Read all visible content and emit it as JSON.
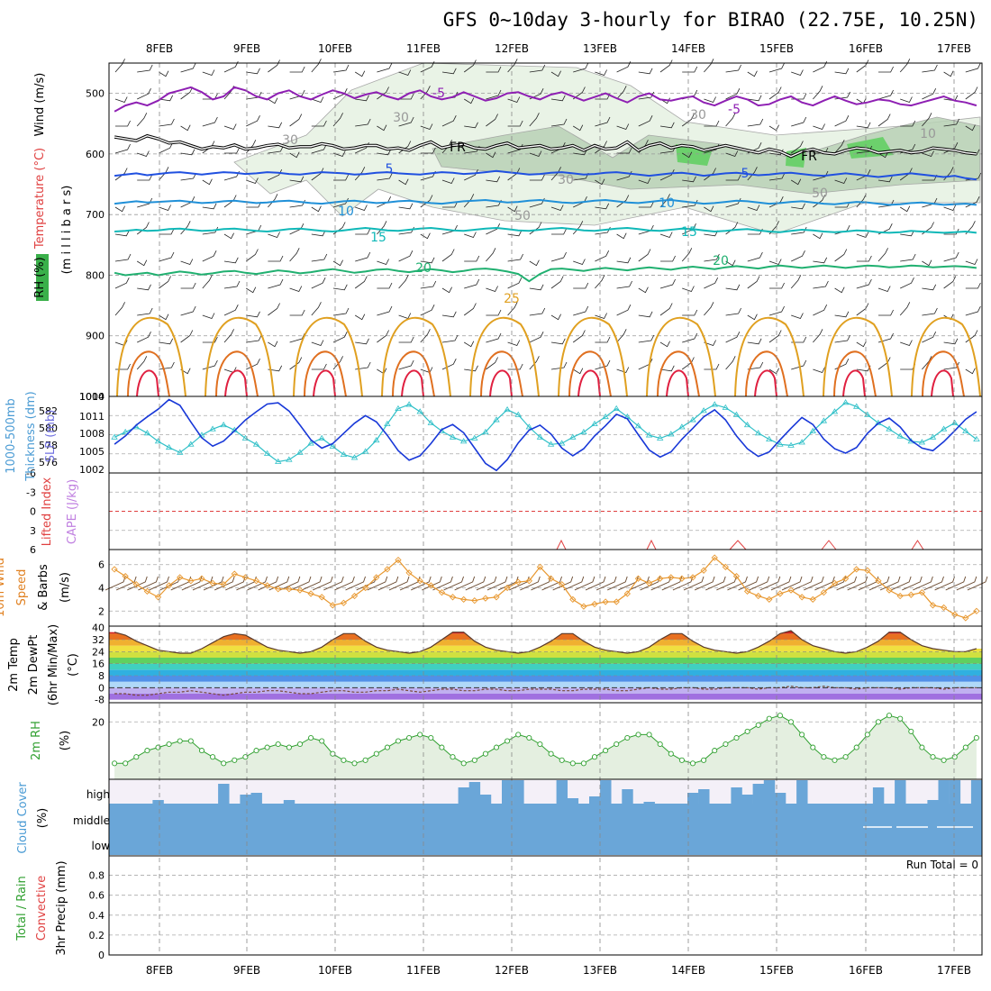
{
  "title": "GFS 0~10day 3-hourly for BIRAO (22.75E, 10.25N)",
  "dates": [
    "8FEB",
    "9FEB",
    "10FEB",
    "11FEB",
    "12FEB",
    "13FEB",
    "14FEB",
    "15FEB",
    "16FEB",
    "17FEB"
  ],
  "panels": {
    "upper": {
      "labels": [
        {
          "text": "Wind (m/s)",
          "color": "#000000"
        },
        {
          "text": "Temperature (°C)",
          "color": "#e04040"
        },
        {
          "text": "RH (%)",
          "color": "#000000"
        },
        {
          "text": "(m i l l i b a r s)",
          "color": "#000000"
        }
      ],
      "y_ticks": [
        "500",
        "600",
        "700",
        "800",
        "900",
        "1000"
      ],
      "contour_labels": [
        "-5",
        "-5",
        "FR",
        "FR",
        "5",
        "5",
        "10",
        "10",
        "15",
        "15",
        "20",
        "20",
        "25",
        "30",
        "30",
        "30",
        "30",
        "50",
        "50",
        "10"
      ]
    },
    "thickness": {
      "labels": [
        {
          "text": "1000-500mb",
          "color": "#4a9bd4"
        },
        {
          "text": "Thickness (dm)",
          "color": "#4a9bd4"
        },
        {
          "text": "SLP (mb)",
          "color": "#7070e0"
        }
      ],
      "left_ticks": [
        "582",
        "580",
        "578",
        "576"
      ],
      "right_ticks": [
        "1014",
        "1011",
        "1008",
        "1005",
        "1002"
      ]
    },
    "li": {
      "labels": [
        {
          "text": "Lifted Index",
          "color": "#e04040"
        },
        {
          "text": "CAPE (J/kg)",
          "color": "#c080e0"
        }
      ],
      "y_ticks": [
        "-6",
        "-3",
        "0",
        "3",
        "6"
      ]
    },
    "wind10": {
      "labels": [
        {
          "text": "10m Wind",
          "color": "#e08020"
        },
        {
          "text": "Speed",
          "color": "#e08020"
        },
        {
          "text": "& Barbs",
          "color": "#000000"
        },
        {
          "text": "(m/s)",
          "color": "#000000"
        }
      ],
      "y_ticks": [
        "6",
        "4",
        "2"
      ]
    },
    "temp2m": {
      "labels": [
        {
          "text": "2m Temp",
          "color": "#000000"
        },
        {
          "text": "2m DewPt",
          "color": "#000000"
        },
        {
          "text": "(6hr Min/Max)",
          "color": "#000000"
        },
        {
          "text": "(°C)",
          "color": "#000000"
        }
      ],
      "y_ticks": [
        "40",
        "32",
        "24",
        "16",
        "8",
        "0",
        "-8"
      ]
    },
    "rh2m": {
      "labels": [
        {
          "text": "2m RH",
          "color": "#30a030"
        },
        {
          "text": "(%)",
          "color": "#000000"
        }
      ],
      "y_ticks": [
        "20"
      ]
    },
    "cloud": {
      "labels": [
        {
          "text": "Cloud Cover",
          "color": "#4a9bd4"
        },
        {
          "text": "(%)",
          "color": "#000000"
        }
      ],
      "levels": [
        "high",
        "middle",
        "low"
      ]
    },
    "precip": {
      "labels": [
        {
          "text": "Total / Rain",
          "color": "#30a030"
        },
        {
          "text": "Convective",
          "color": "#e04040"
        },
        {
          "text": "3hr Precip (mm)",
          "color": "#000000"
        }
      ],
      "y_ticks": [
        "0.8",
        "0.6",
        "0.4",
        "0.2",
        "0"
      ],
      "run_total": "Run Total = 0"
    }
  },
  "chart_data": {
    "type": "line",
    "x_dates": [
      "8FEB",
      "9FEB",
      "10FEB",
      "11FEB",
      "12FEB",
      "13FEB",
      "14FEB",
      "15FEB",
      "16FEB",
      "17FEB"
    ],
    "n_steps": 80,
    "freezing_level_mb": [
      572,
      575,
      578,
      570,
      575,
      582,
      580,
      586,
      592,
      588,
      590,
      585,
      592,
      590,
      586,
      584,
      590,
      588,
      588,
      583,
      586,
      592,
      590,
      586,
      586,
      592,
      590,
      594,
      586,
      580,
      590,
      586,
      584,
      590,
      592,
      586,
      582,
      590,
      588,
      586,
      592,
      590,
      586,
      594,
      586,
      592,
      590,
      580,
      594,
      586,
      582,
      590,
      586,
      588,
      594,
      590,
      586,
      590,
      594,
      598,
      592,
      596,
      604,
      596,
      592,
      598,
      600,
      594,
      590,
      592,
      598,
      596,
      594,
      598,
      596,
      590,
      592,
      594,
      598,
      600
    ],
    "iso_minus5_mb": [
      530,
      520,
      515,
      520,
      512,
      500,
      495,
      490,
      498,
      510,
      505,
      490,
      495,
      505,
      510,
      500,
      495,
      505,
      510,
      502,
      495,
      500,
      508,
      502,
      498,
      505,
      510,
      500,
      495,
      505,
      510,
      506,
      498,
      505,
      512,
      508,
      500,
      498,
      505,
      510,
      502,
      498,
      505,
      512,
      506,
      500,
      508,
      515,
      505,
      500,
      510,
      512,
      508,
      505,
      515,
      520,
      512,
      505,
      510,
      520,
      518,
      510,
      505,
      515,
      520,
      512,
      505,
      512,
      518,
      515,
      510,
      512,
      518,
      520,
      515,
      510,
      505,
      512,
      515,
      520
    ],
    "iso5_mb": [
      636,
      634,
      632,
      635,
      633,
      631,
      630,
      632,
      634,
      632,
      630,
      631,
      633,
      632,
      630,
      631,
      633,
      634,
      632,
      630,
      631,
      632,
      634,
      633,
      631,
      630,
      632,
      633,
      634,
      632,
      630,
      631,
      633,
      632,
      630,
      628,
      630,
      632,
      634,
      633,
      631,
      630,
      632,
      634,
      633,
      631,
      630,
      632,
      634,
      636,
      634,
      632,
      631,
      633,
      636,
      634,
      632,
      631,
      633,
      635,
      634,
      632,
      631,
      633,
      635,
      636,
      634,
      632,
      634,
      636,
      638,
      636,
      634,
      632,
      634,
      636,
      638,
      636,
      640,
      642
    ],
    "iso10_mb": [
      682,
      680,
      678,
      680,
      679,
      678,
      677,
      679,
      681,
      680,
      678,
      677,
      679,
      681,
      680,
      678,
      677,
      679,
      681,
      682,
      680,
      678,
      677,
      679,
      681,
      680,
      678,
      677,
      679,
      681,
      682,
      680,
      678,
      677,
      676,
      678,
      680,
      679,
      677,
      676,
      678,
      680,
      681,
      679,
      677,
      676,
      678,
      680,
      681,
      679,
      677,
      676,
      678,
      680,
      682,
      681,
      679,
      677,
      678,
      680,
      682,
      681,
      679,
      678,
      680,
      682,
      683,
      681,
      679,
      680,
      682,
      684,
      683,
      681,
      680,
      682,
      684,
      683,
      682,
      684
    ],
    "iso15_mb": [
      728,
      727,
      725,
      727,
      726,
      724,
      723,
      725,
      727,
      726,
      724,
      723,
      725,
      727,
      728,
      726,
      724,
      723,
      725,
      727,
      728,
      726,
      724,
      722,
      724,
      726,
      727,
      725,
      723,
      722,
      724,
      726,
      727,
      725,
      723,
      722,
      724,
      726,
      727,
      725,
      723,
      722,
      724,
      726,
      727,
      725,
      723,
      722,
      724,
      726,
      727,
      725,
      723,
      724,
      726,
      728,
      727,
      725,
      724,
      726,
      728,
      729,
      727,
      725,
      726,
      728,
      729,
      728,
      726,
      727,
      729,
      730,
      729,
      727,
      728,
      729,
      730,
      729,
      728,
      730
    ],
    "iso20_mb": [
      796,
      800,
      798,
      796,
      800,
      797,
      794,
      796,
      799,
      797,
      794,
      793,
      796,
      798,
      795,
      792,
      794,
      797,
      795,
      792,
      790,
      793,
      796,
      794,
      791,
      790,
      793,
      795,
      792,
      790,
      792,
      795,
      793,
      790,
      789,
      791,
      794,
      798,
      810,
      798,
      790,
      789,
      791,
      793,
      790,
      788,
      790,
      792,
      789,
      787,
      789,
      791,
      788,
      786,
      788,
      790,
      787,
      785,
      787,
      789,
      786,
      784,
      786,
      788,
      786,
      784,
      786,
      788,
      786,
      784,
      785,
      787,
      786,
      784,
      785,
      787,
      786,
      785,
      786,
      788
    ],
    "thickness_dm": [
      579.0,
      579.5,
      580.0,
      579.4,
      578.6,
      578.0,
      577.5,
      578.3,
      579.2,
      579.8,
      580.2,
      579.7,
      578.9,
      578.3,
      577.4,
      576.6,
      576.8,
      577.5,
      578.4,
      578.9,
      578.1,
      577.3,
      577.0,
      577.6,
      578.7,
      580.3,
      581.8,
      582.2,
      581.5,
      580.4,
      579.6,
      579.0,
      578.6,
      578.9,
      579.5,
      580.7,
      581.7,
      581.2,
      580.0,
      579.0,
      578.3,
      578.4,
      579.0,
      579.5,
      580.3,
      581.0,
      581.8,
      581.0,
      580.1,
      579.2,
      578.9,
      579.3,
      580.0,
      580.7,
      581.6,
      582.2,
      581.9,
      581.2,
      580.2,
      579.4,
      578.8,
      578.3,
      578.2,
      578.5,
      579.6,
      580.6,
      581.5,
      582.4,
      582.0,
      581.2,
      580.4,
      579.8,
      579.1,
      578.6,
      578.5,
      579.0,
      579.8,
      580.4,
      579.6,
      578.8
    ],
    "slp_mb": [
      1006.5,
      1007.8,
      1009.5,
      1010.8,
      1012.0,
      1013.5,
      1012.6,
      1010.0,
      1007.5,
      1006.2,
      1007.0,
      1008.6,
      1010.3,
      1011.6,
      1012.8,
      1013.0,
      1011.7,
      1009.5,
      1007.2,
      1005.9,
      1006.6,
      1008.2,
      1009.8,
      1011.0,
      1010.0,
      1007.9,
      1005.5,
      1004.0,
      1004.7,
      1006.6,
      1008.8,
      1009.6,
      1008.3,
      1005.9,
      1003.5,
      1002.4,
      1004.1,
      1006.7,
      1008.7,
      1009.5,
      1008.1,
      1005.9,
      1004.7,
      1005.8,
      1007.8,
      1009.4,
      1011.2,
      1010.5,
      1008.0,
      1005.6,
      1004.5,
      1005.3,
      1007.3,
      1009.0,
      1010.8,
      1011.9,
      1010.3,
      1007.8,
      1005.8,
      1004.6,
      1005.3,
      1007.2,
      1009.0,
      1010.7,
      1009.6,
      1007.3,
      1005.8,
      1005.1,
      1006.0,
      1008.2,
      1009.8,
      1010.6,
      1009.2,
      1007.1,
      1005.9,
      1005.5,
      1006.9,
      1008.6,
      1010.4,
      1011.6
    ],
    "lifted_index_dash": 0,
    "cape_jkg": [
      0,
      0,
      0,
      0,
      0,
      0,
      0,
      0,
      0,
      0,
      0,
      0,
      0,
      0,
      0,
      0,
      0,
      0,
      0,
      0,
      0,
      0,
      0,
      0,
      0,
      0,
      0,
      0,
      0,
      0,
      0,
      0,
      0,
      0,
      0,
      0,
      0,
      0,
      0,
      0,
      0,
      0,
      0,
      0,
      0,
      0,
      0,
      0,
      0,
      0,
      0,
      0,
      0,
      0,
      0,
      0,
      0,
      0,
      0,
      0,
      0,
      0,
      0,
      0,
      0,
      0,
      0,
      0,
      0,
      0,
      0,
      0,
      0,
      0,
      0,
      0,
      0,
      0,
      0,
      0
    ],
    "wind10_ms": [
      5.6,
      5.0,
      4.3,
      3.7,
      3.2,
      4.2,
      4.9,
      4.6,
      4.8,
      4.4,
      4.3,
      5.2,
      4.9,
      4.6,
      4.2,
      3.9,
      3.9,
      3.8,
      3.5,
      3.2,
      2.5,
      2.7,
      3.3,
      4.0,
      4.9,
      5.6,
      6.4,
      5.3,
      4.6,
      4.2,
      3.6,
      3.2,
      3.0,
      2.9,
      3.1,
      3.2,
      4.0,
      4.5,
      4.6,
      5.8,
      4.8,
      4.3,
      3.0,
      2.4,
      2.6,
      2.8,
      2.8,
      3.5,
      4.8,
      4.4,
      4.8,
      4.9,
      4.8,
      4.9,
      5.5,
      6.6,
      5.8,
      5.0,
      3.7,
      3.3,
      3.0,
      3.5,
      3.8,
      3.2,
      3.0,
      3.6,
      4.4,
      4.8,
      5.6,
      5.5,
      4.6,
      3.8,
      3.3,
      3.4,
      3.6,
      2.5,
      2.3,
      1.7,
      1.4,
      2.0
    ],
    "temp2m_c": [
      37,
      35,
      31,
      28,
      25,
      24,
      23,
      23,
      26,
      30,
      34,
      36,
      35,
      31,
      27,
      25,
      24,
      23,
      24,
      27,
      32,
      36,
      36,
      31,
      27,
      25,
      24,
      23,
      24,
      27,
      32,
      37,
      37,
      31,
      27,
      25,
      24,
      23,
      24,
      27,
      31,
      36,
      36,
      31,
      27,
      25,
      24,
      23,
      24,
      27,
      32,
      36,
      36,
      31,
      27,
      25,
      24,
      23,
      24,
      27,
      31,
      36,
      38,
      32,
      28,
      26,
      24,
      23,
      24,
      27,
      31,
      37,
      37,
      32,
      28,
      26,
      25,
      24,
      24,
      26
    ],
    "dewpt2m_c": [
      -4,
      -4,
      -5,
      -5,
      -4,
      -3,
      -3,
      -2,
      -3,
      -4,
      -5,
      -4,
      -3,
      -3,
      -2,
      -2,
      -3,
      -4,
      -4,
      -3,
      -2,
      -2,
      -3,
      -3,
      -2,
      -2,
      -1,
      -2,
      -3,
      -2,
      -1,
      -1,
      -2,
      -2,
      -1,
      -1,
      -2,
      -2,
      -1,
      -1,
      -1,
      -2,
      -2,
      -1,
      -1,
      -1,
      -2,
      -2,
      -1,
      0,
      -1,
      -1,
      0,
      0,
      -1,
      -1,
      0,
      0,
      0,
      -1,
      0,
      0,
      1,
      0,
      0,
      1,
      0,
      0,
      -1,
      0,
      0,
      0,
      -1,
      0,
      0,
      0,
      -1,
      0,
      0,
      0
    ],
    "rh2m_pct": [
      7,
      7,
      9,
      11,
      12,
      13,
      14,
      14,
      11,
      9,
      7,
      8,
      9,
      11,
      12,
      13,
      12,
      13,
      15,
      14,
      10,
      8,
      7,
      8,
      10,
      12,
      14,
      15,
      16,
      15,
      12,
      9,
      7,
      8,
      10,
      12,
      14,
      16,
      15,
      13,
      10,
      8,
      7,
      7,
      9,
      11,
      13,
      15,
      16,
      16,
      13,
      10,
      8,
      7,
      8,
      11,
      13,
      15,
      17,
      19,
      21,
      22,
      20,
      16,
      12,
      9,
      8,
      9,
      12,
      16,
      20,
      22,
      21,
      17,
      12,
      9,
      8,
      9,
      12,
      15
    ]
  }
}
